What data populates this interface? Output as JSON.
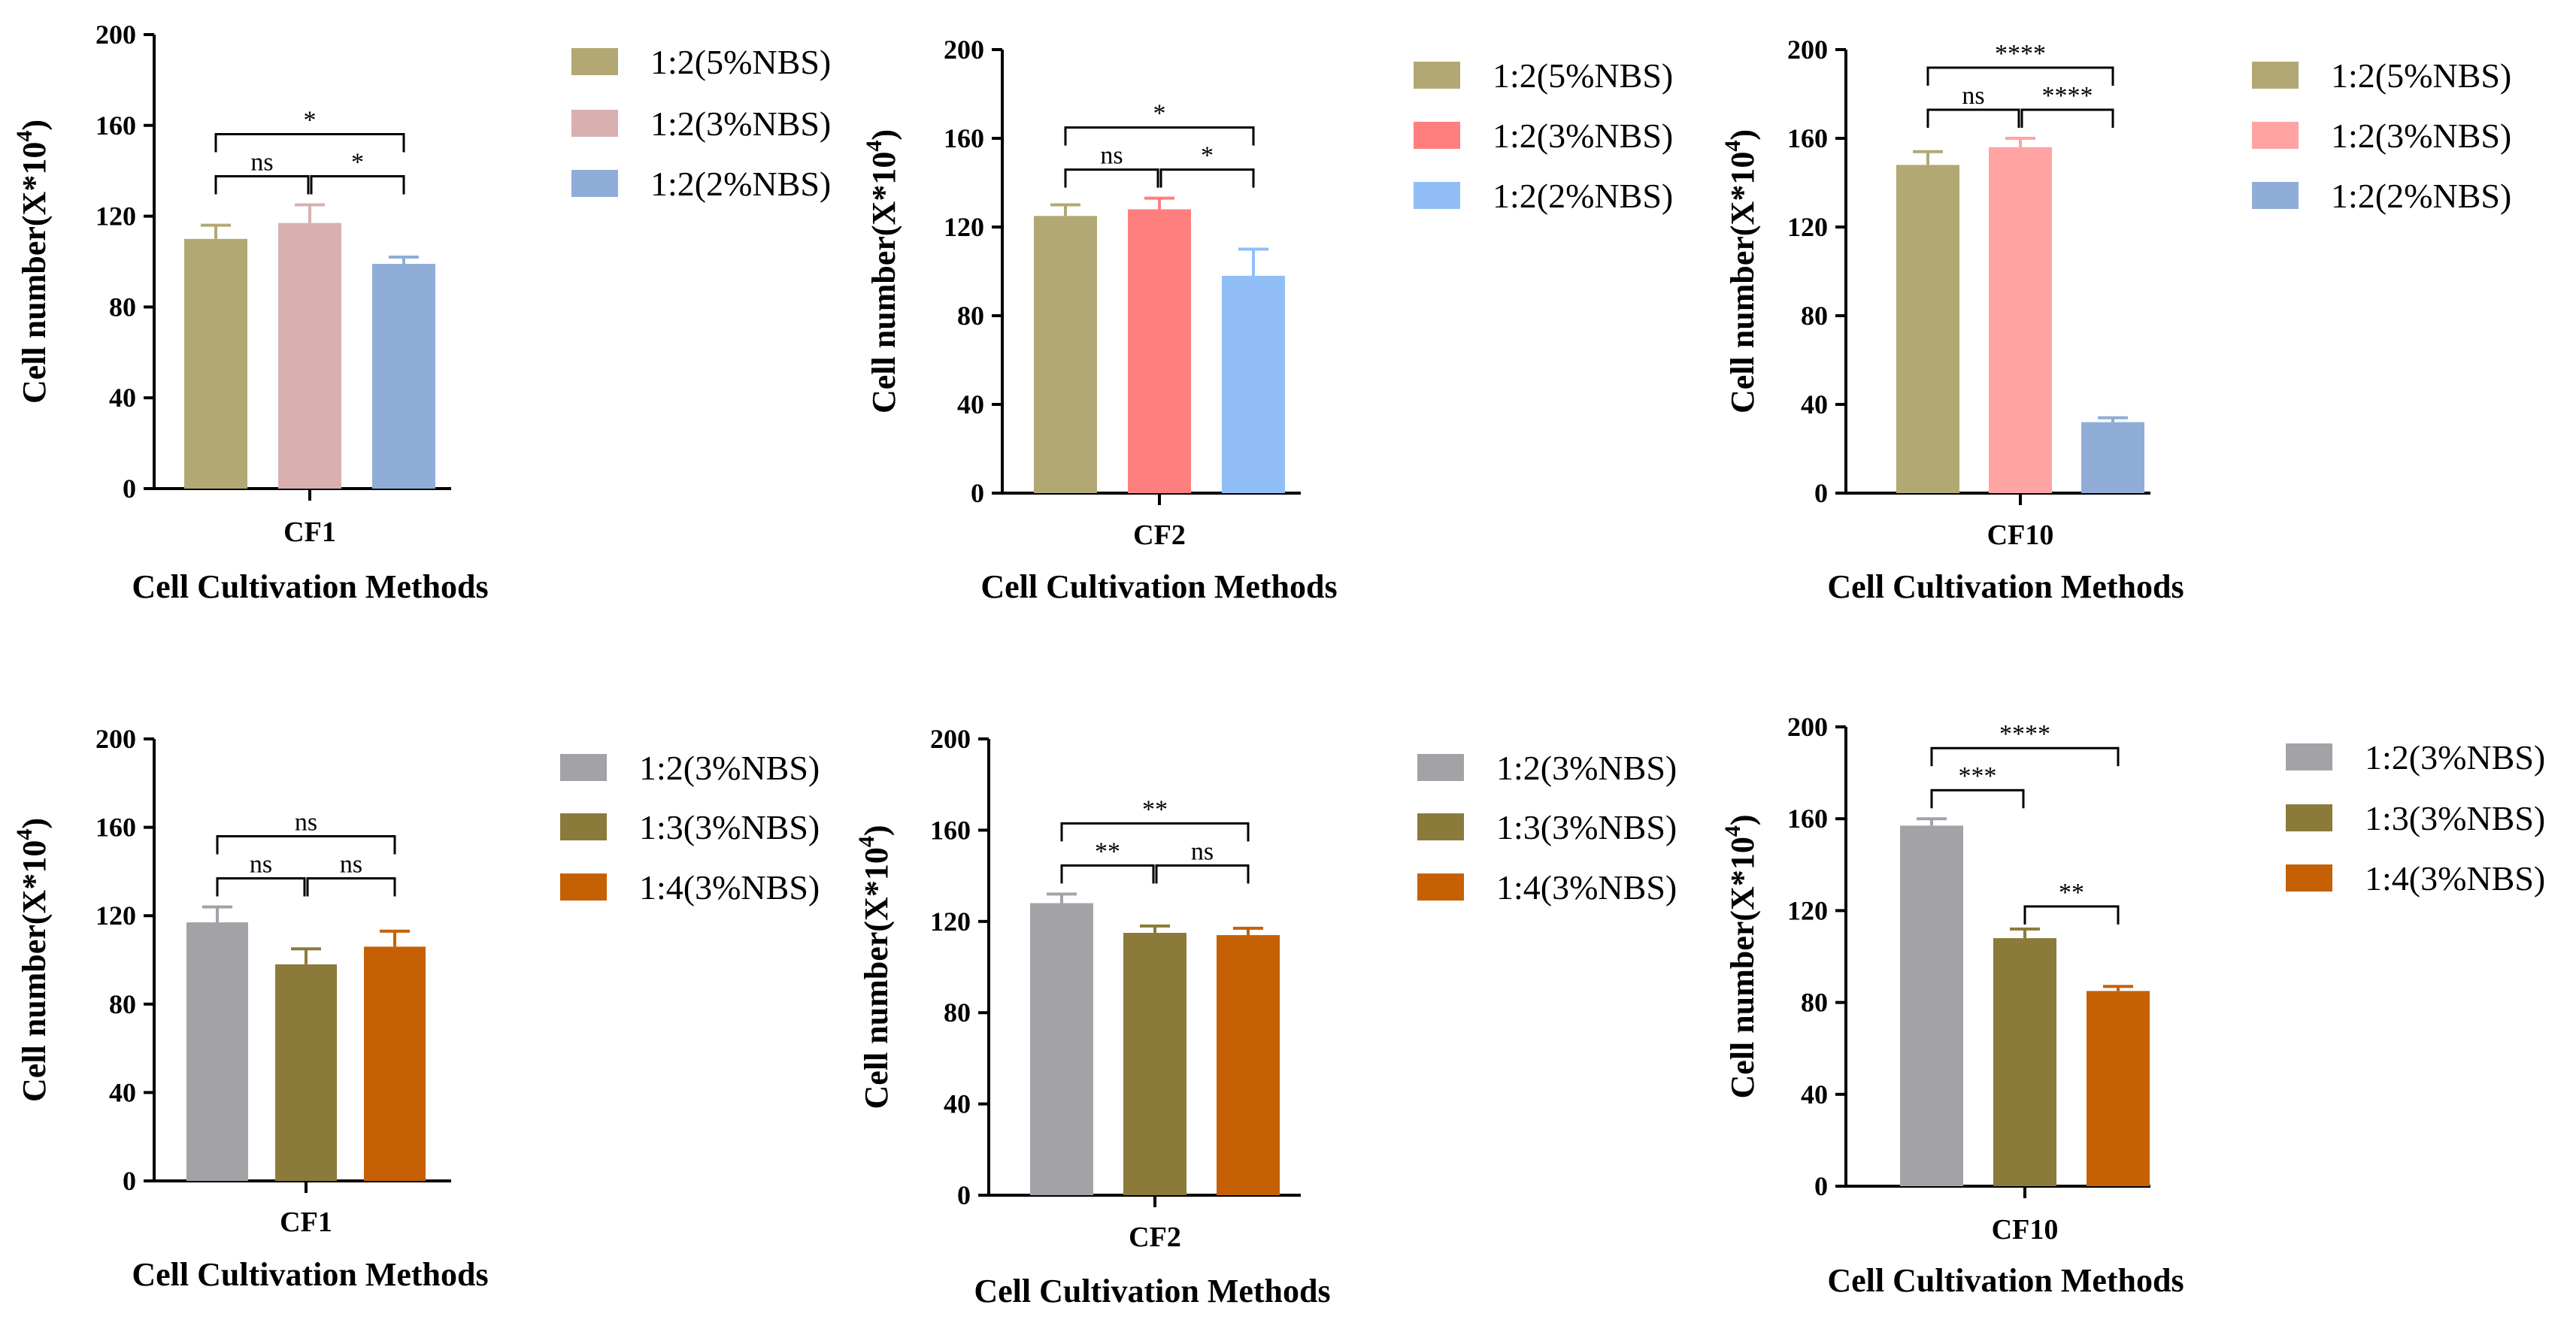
{
  "chart_data": [
    {
      "type": "bar",
      "panel": "top-left",
      "categories": [
        "CF1"
      ],
      "xlabel": "Cell Cultivation Methods",
      "ylabel": "Cell number(X*10^4)",
      "ylim": [
        0,
        200
      ],
      "yticks": [
        0,
        40,
        80,
        120,
        160,
        200
      ],
      "series": [
        {
          "name": "1:2(5%NBS)",
          "value": 110,
          "error": 6,
          "color": "#B2A874"
        },
        {
          "name": "1:2(3%NBS)",
          "value": 117,
          "error": 8,
          "color": "#D7B0AF"
        },
        {
          "name": "1:2(2%NBS)",
          "value": 99,
          "error": 3,
          "color": "#8FADD6"
        }
      ],
      "comparisons": [
        {
          "from": 0,
          "to": 1,
          "label": "ns",
          "level": 0
        },
        {
          "from": 1,
          "to": 2,
          "label": "*",
          "level": 0
        },
        {
          "from": 0,
          "to": 2,
          "label": "*",
          "level": 1
        }
      ]
    },
    {
      "type": "bar",
      "panel": "top-middle",
      "categories": [
        "CF2"
      ],
      "xlabel": "Cell Cultivation Methods",
      "ylabel": "Cell number(X*10^4)",
      "ylim": [
        0,
        200
      ],
      "yticks": [
        0,
        40,
        80,
        120,
        160,
        200
      ],
      "series": [
        {
          "name": "1:2(5%NBS)",
          "value": 125,
          "error": 5,
          "color": "#B2A874"
        },
        {
          "name": "1:2(3%NBS)",
          "value": 128,
          "error": 5,
          "color": "#FF7F7F"
        },
        {
          "name": "1:2(2%NBS)",
          "value": 98,
          "error": 12,
          "color": "#91BEF7"
        }
      ],
      "comparisons": [
        {
          "from": 0,
          "to": 1,
          "label": "ns",
          "level": 0
        },
        {
          "from": 1,
          "to": 2,
          "label": "*",
          "level": 0
        },
        {
          "from": 0,
          "to": 2,
          "label": "*",
          "level": 1
        }
      ]
    },
    {
      "type": "bar",
      "panel": "top-right",
      "categories": [
        "CF10"
      ],
      "xlabel": "Cell Cultivation Methods",
      "ylabel": "Cell number(X*10^4)",
      "ylim": [
        0,
        200
      ],
      "yticks": [
        0,
        40,
        80,
        120,
        160,
        200
      ],
      "series": [
        {
          "name": "1:2(5%NBS)",
          "value": 148,
          "error": 6,
          "color": "#B2A874"
        },
        {
          "name": "1:2(3%NBS)",
          "value": 156,
          "error": 4,
          "color": "#FFA3A3"
        },
        {
          "name": "1:2(2%NBS)",
          "value": 32,
          "error": 2,
          "color": "#8FADD6"
        }
      ],
      "comparisons": [
        {
          "from": 0,
          "to": 1,
          "label": "ns",
          "level": 0
        },
        {
          "from": 1,
          "to": 2,
          "label": "****",
          "level": 0
        },
        {
          "from": 0,
          "to": 2,
          "label": "****",
          "level": 1
        }
      ]
    },
    {
      "type": "bar",
      "panel": "bottom-left",
      "categories": [
        "CF1"
      ],
      "xlabel": "Cell Cultivation Methods",
      "ylabel": "Cell number(X*10^4)",
      "ylim": [
        0,
        200
      ],
      "yticks": [
        0,
        40,
        80,
        120,
        160,
        200
      ],
      "series": [
        {
          "name": "1:2(3%NBS)",
          "value": 117,
          "error": 7,
          "color": "#A3A2A7"
        },
        {
          "name": "1:3(3%NBS)",
          "value": 98,
          "error": 7,
          "color": "#8B7A3A"
        },
        {
          "name": "1:4(3%NBS)",
          "value": 106,
          "error": 7,
          "color": "#C56104"
        }
      ],
      "comparisons": [
        {
          "from": 0,
          "to": 1,
          "label": "ns",
          "level": 0
        },
        {
          "from": 1,
          "to": 2,
          "label": "ns",
          "level": 0
        },
        {
          "from": 0,
          "to": 2,
          "label": "ns",
          "level": 1
        }
      ]
    },
    {
      "type": "bar",
      "panel": "bottom-middle",
      "categories": [
        "CF2"
      ],
      "xlabel": "Cell Cultivation Methods",
      "ylabel": "Cell number(X*10^4)",
      "ylim": [
        0,
        200
      ],
      "yticks": [
        0,
        40,
        80,
        120,
        160,
        200
      ],
      "series": [
        {
          "name": "1:2(3%NBS)",
          "value": 128,
          "error": 4,
          "color": "#A3A2A7"
        },
        {
          "name": "1:3(3%NBS)",
          "value": 115,
          "error": 3,
          "color": "#8B7A3A"
        },
        {
          "name": "1:4(3%NBS)",
          "value": 114,
          "error": 3,
          "color": "#C56104"
        }
      ],
      "comparisons": [
        {
          "from": 0,
          "to": 1,
          "label": "**",
          "level": 0
        },
        {
          "from": 1,
          "to": 2,
          "label": "ns",
          "level": 0
        },
        {
          "from": 0,
          "to": 2,
          "label": "**",
          "level": 1
        }
      ]
    },
    {
      "type": "bar",
      "panel": "bottom-right",
      "categories": [
        "CF10"
      ],
      "xlabel": "Cell Cultivation Methods",
      "ylabel": "Cell number(X*10^4)",
      "ylim": [
        0,
        200
      ],
      "yticks": [
        0,
        40,
        80,
        120,
        160,
        200
      ],
      "series": [
        {
          "name": "1:2(3%NBS)",
          "value": 157,
          "error": 3,
          "color": "#A3A2A7"
        },
        {
          "name": "1:3(3%NBS)",
          "value": 108,
          "error": 4,
          "color": "#8B7A3A"
        },
        {
          "name": "1:4(3%NBS)",
          "value": 85,
          "error": 2,
          "color": "#C56104"
        }
      ],
      "comparisons": [
        {
          "from": 0,
          "to": 1,
          "label": "***",
          "level": 0
        },
        {
          "from": 1,
          "to": 2,
          "label": "**",
          "level": -1
        },
        {
          "from": 0,
          "to": 2,
          "label": "****",
          "level": 1
        }
      ]
    }
  ]
}
